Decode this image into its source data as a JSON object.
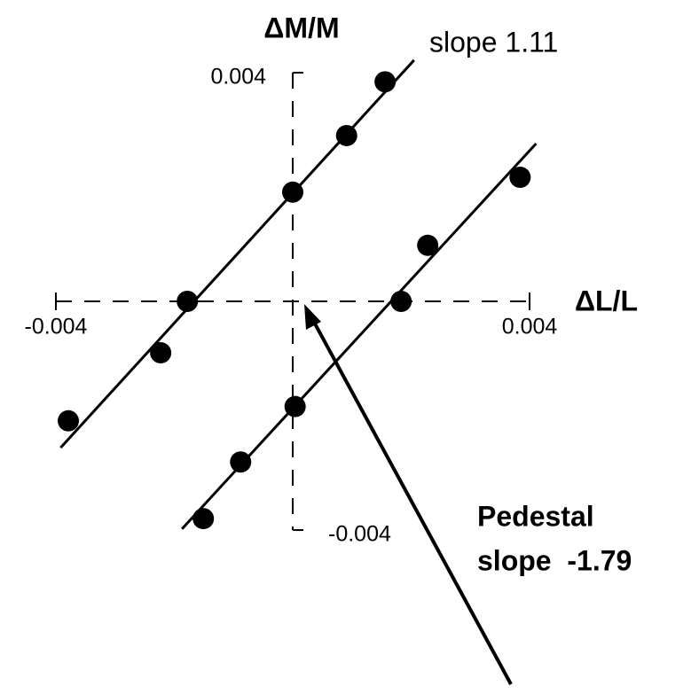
{
  "chart_data": {
    "type": "scatter",
    "xlabel": "ΔL/L",
    "ylabel": "ΔM/M",
    "annotations": [
      "slope 1.11",
      "Pedestal",
      "slope  -1.79"
    ],
    "xlim": [
      -0.004,
      0.004
    ],
    "ylim": [
      -0.004,
      0.004
    ],
    "xticks": [
      -0.004,
      0.004
    ],
    "yticks": [
      0.004,
      -0.004
    ],
    "color": "#000000",
    "series": [
      {
        "x": [
          -0.00379,
          -0.00223,
          -0.00178,
          0.0,
          0.00091,
          0.00156
        ],
        "values": [
          -0.00209,
          -0.0009,
          0.0,
          0.00191,
          0.0029,
          0.00384
        ]
      },
      {
        "x": [
          -0.00151,
          -0.00088,
          4e-05,
          0.00183,
          0.00228,
          0.00384
        ],
        "values": [
          -0.0038,
          -0.00281,
          -0.00184,
          0.0,
          0.00098,
          0.00217
        ]
      }
    ],
    "lines": [
      {
        "x": [
          -0.00392,
          0.00205
        ],
        "values": [
          -0.00256,
          0.00422
        ]
      },
      {
        "x": [
          -0.00187,
          0.00411
        ],
        "values": [
          -0.00398,
          0.00276
        ]
      }
    ]
  }
}
